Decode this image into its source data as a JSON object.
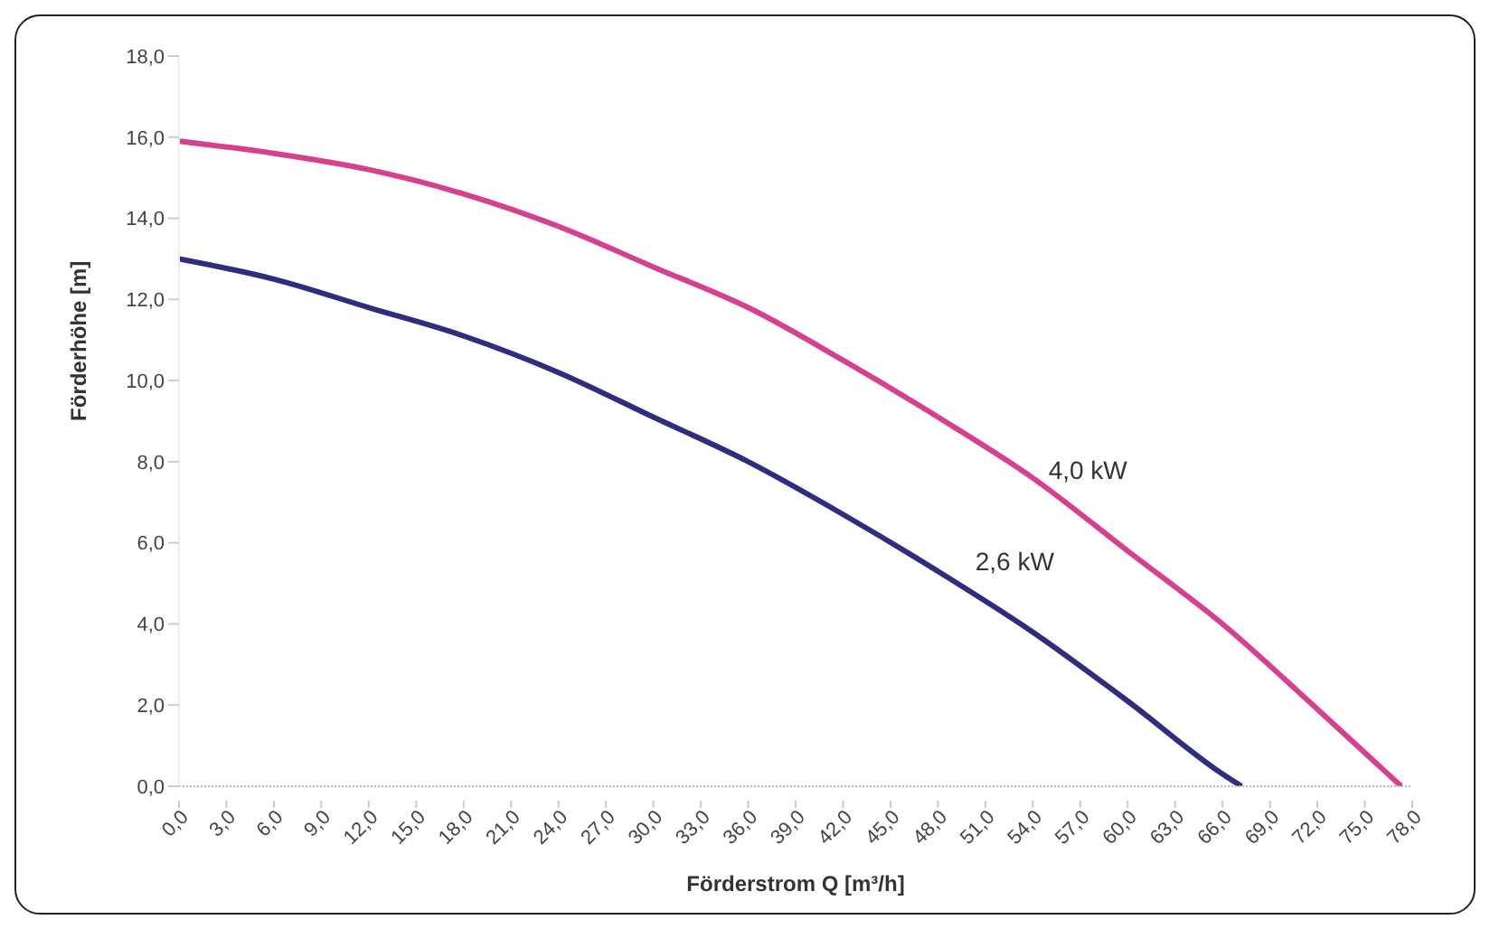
{
  "chart_data": {
    "type": "line",
    "xlabel": "Förderstrom Q [m³/h]",
    "ylabel": "Förderhöhe [m]",
    "xlim": [
      0,
      78
    ],
    "xticks": [
      {
        "value": 0,
        "label": "0,0"
      },
      {
        "value": 3,
        "label": "3,0"
      },
      {
        "value": 6,
        "label": "6,0"
      },
      {
        "value": 9,
        "label": "9,0"
      },
      {
        "value": 12,
        "label": "12,0"
      },
      {
        "value": 15,
        "label": "15,0"
      },
      {
        "value": 18,
        "label": "18,0"
      },
      {
        "value": 21,
        "label": "21,0"
      },
      {
        "value": 24,
        "label": "24,0"
      },
      {
        "value": 27,
        "label": "27,0"
      },
      {
        "value": 30,
        "label": "30,0"
      },
      {
        "value": 33,
        "label": "33,0"
      },
      {
        "value": 36,
        "label": "36,0"
      },
      {
        "value": 39,
        "label": "39,0"
      },
      {
        "value": 42,
        "label": "42,0"
      },
      {
        "value": 45,
        "label": "45,0"
      },
      {
        "value": 48,
        "label": "48,0"
      },
      {
        "value": 51,
        "label": "51,0"
      },
      {
        "value": 54,
        "label": "54,0"
      },
      {
        "value": 57,
        "label": "57,0"
      },
      {
        "value": 60,
        "label": "60,0"
      },
      {
        "value": 63,
        "label": "63,0"
      },
      {
        "value": 66,
        "label": "66,0"
      },
      {
        "value": 69,
        "label": "69,0"
      },
      {
        "value": 72,
        "label": "72,0"
      },
      {
        "value": 75,
        "label": "75,0"
      },
      {
        "value": 78,
        "label": "78,0"
      }
    ],
    "ylim": [
      0,
      18
    ],
    "yticks": [
      {
        "value": 0,
        "label": "0,0"
      },
      {
        "value": 2,
        "label": "2,0"
      },
      {
        "value": 4,
        "label": "4,0"
      },
      {
        "value": 6,
        "label": "6,0"
      },
      {
        "value": 8,
        "label": "8,0"
      },
      {
        "value": 10,
        "label": "10,0"
      },
      {
        "value": 12,
        "label": "12,0"
      },
      {
        "value": 14,
        "label": "14,0"
      },
      {
        "value": 16,
        "label": "16,0"
      },
      {
        "value": 18,
        "label": "18,0"
      }
    ],
    "grid": false,
    "legend": false,
    "marker": "none",
    "line_style": "solid",
    "series": [
      {
        "name": "4,0 kW",
        "color": "#d6408f",
        "x": [
          0,
          6,
          12,
          18,
          24,
          30,
          36,
          42,
          48,
          54,
          60,
          66,
          72,
          77.3
        ],
        "values": [
          15.9,
          15.6,
          15.2,
          14.6,
          13.8,
          12.8,
          11.8,
          10.5,
          9.1,
          7.6,
          5.8,
          4.0,
          1.9,
          0
        ]
      },
      {
        "name": "2,6 kW",
        "color": "#2e2d7e",
        "x": [
          0,
          6,
          12,
          18,
          24,
          30,
          36,
          42,
          48,
          54,
          60,
          66,
          67.2
        ],
        "values": [
          13.0,
          12.5,
          11.8,
          11.1,
          10.2,
          9.1,
          8.0,
          6.7,
          5.3,
          3.8,
          2.1,
          0.3,
          0
        ]
      }
    ]
  }
}
